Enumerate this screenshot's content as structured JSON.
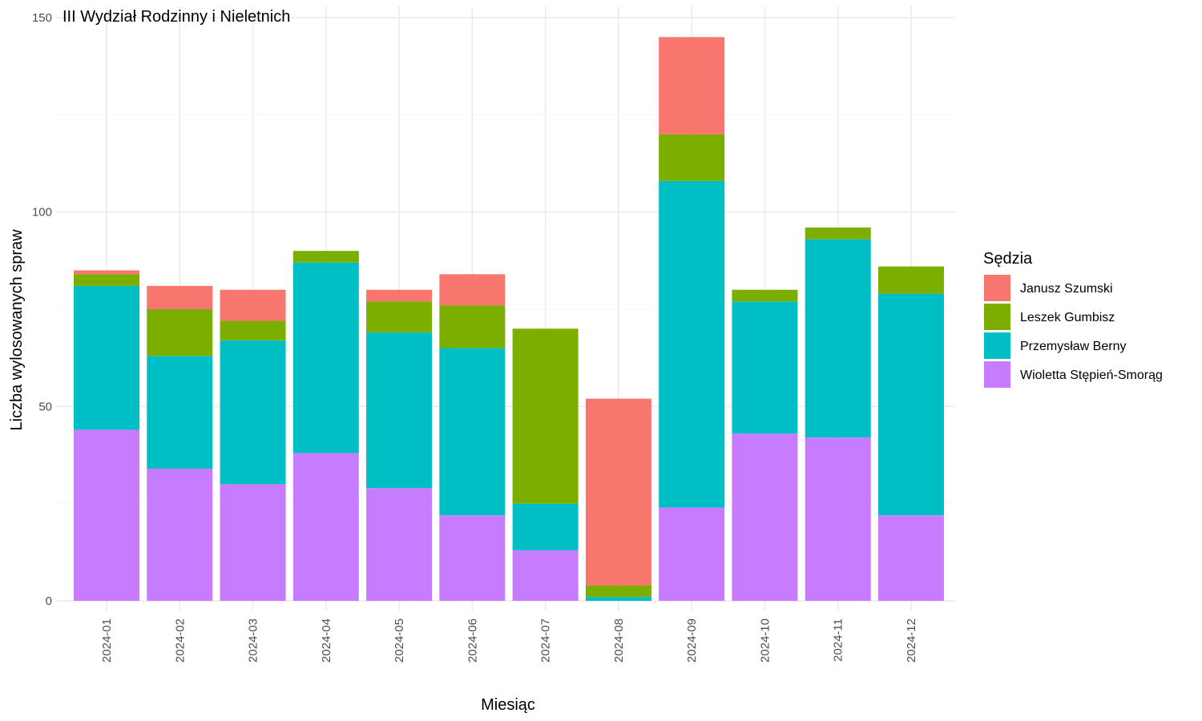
{
  "chart_data": {
    "type": "bar",
    "stacked": true,
    "title": "III Wydział Rodzinny i Nieletnich",
    "xlabel": "Miesiąc",
    "ylabel": "Liczba wylosowanych spraw",
    "ylim": [
      0,
      150
    ],
    "yticks": [
      0,
      50,
      100,
      150
    ],
    "grid": true,
    "legend": {
      "title": "Sędzia",
      "position": "right"
    },
    "categories": [
      "2024-01",
      "2024-02",
      "2024-03",
      "2024-04",
      "2024-05",
      "2024-06",
      "2024-07",
      "2024-08",
      "2024-09",
      "2024-10",
      "2024-11",
      "2024-12"
    ],
    "series": [
      {
        "name": "Janusz Szumski",
        "color": "#F8766D",
        "values": [
          1,
          6,
          8,
          0,
          3,
          8,
          0,
          48,
          25,
          0,
          0,
          0
        ]
      },
      {
        "name": "Leszek Gumbisz",
        "color": "#7CAE00",
        "values": [
          3,
          12,
          5,
          3,
          8,
          11,
          45,
          3,
          12,
          3,
          3,
          7
        ]
      },
      {
        "name": "Przemysław Berny",
        "color": "#00BFC4",
        "values": [
          37,
          29,
          37,
          49,
          40,
          43,
          12,
          1,
          84,
          34,
          51,
          57
        ]
      },
      {
        "name": "Wioletta Stępień-Smorąg",
        "color": "#C77CFF",
        "values": [
          44,
          34,
          30,
          38,
          29,
          22,
          13,
          0,
          24,
          43,
          42,
          22
        ]
      }
    ]
  }
}
